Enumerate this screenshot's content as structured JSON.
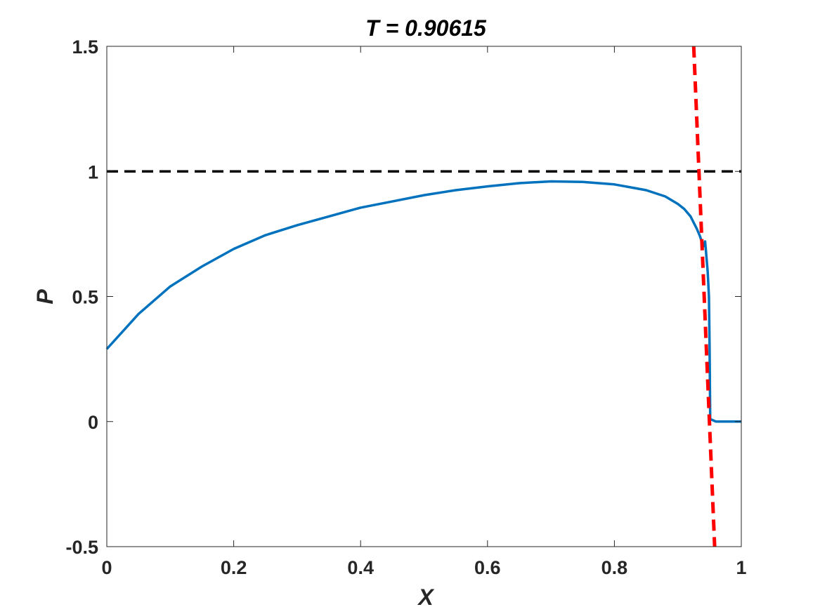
{
  "chart_data": {
    "type": "line",
    "title": "T = 0.90615",
    "xlabel": "X",
    "ylabel": "P",
    "xlim": [
      0,
      1
    ],
    "ylim": [
      -0.5,
      1.5
    ],
    "xticks": [
      0,
      0.2,
      0.4,
      0.6,
      0.8,
      1
    ],
    "xtick_labels": [
      "0",
      "0.2",
      "0.4",
      "0.6",
      "0.8",
      "1"
    ],
    "yticks": [
      -0.5,
      0,
      0.5,
      1,
      1.5
    ],
    "ytick_labels": [
      "-0.5",
      "0",
      "0.5",
      "1",
      "1.5"
    ],
    "grid": false,
    "box": true,
    "series": [
      {
        "style": "solid",
        "color": "#0072BD",
        "x": [
          0,
          0.05,
          0.1,
          0.15,
          0.2,
          0.25,
          0.3,
          0.35,
          0.4,
          0.45,
          0.5,
          0.55,
          0.6,
          0.65,
          0.7,
          0.75,
          0.8,
          0.85,
          0.88,
          0.9,
          0.91,
          0.92,
          0.93,
          0.935,
          0.94,
          0.943,
          0.945,
          0.947,
          0.948,
          0.949,
          0.95,
          0.951,
          0.96,
          1.0
        ],
        "y": [
          0.29,
          0.43,
          0.54,
          0.62,
          0.69,
          0.745,
          0.785,
          0.82,
          0.855,
          0.88,
          0.905,
          0.925,
          0.94,
          0.953,
          0.96,
          0.958,
          0.948,
          0.925,
          0.9,
          0.87,
          0.85,
          0.82,
          0.77,
          0.74,
          0.7,
          0.72,
          0.66,
          0.6,
          0.55,
          0.5,
          0.3,
          0.01,
          0.0,
          0.0
        ]
      },
      {
        "style": "dashed",
        "color": "#000000",
        "x": [
          0,
          1
        ],
        "y": [
          1,
          1
        ]
      },
      {
        "style": "dashed",
        "color": "#FF0000",
        "x": [
          0.925,
          0.958
        ],
        "y": [
          1.5,
          -0.5
        ]
      }
    ]
  }
}
